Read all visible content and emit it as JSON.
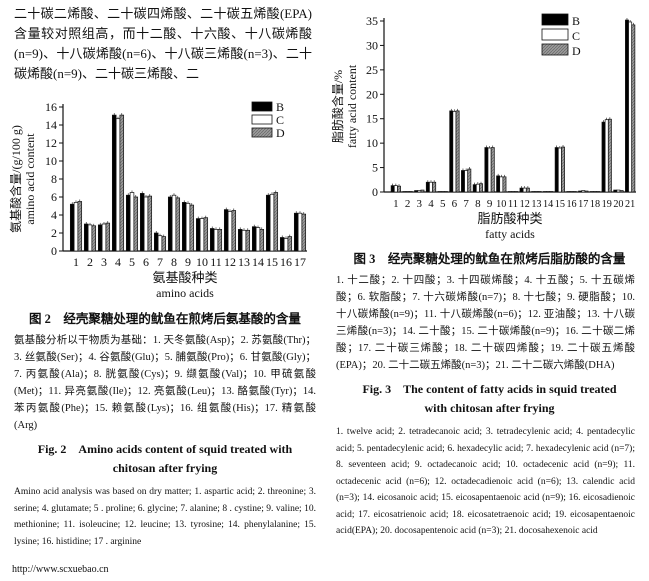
{
  "body_text": "二十碳二烯酸、二十碳四烯酸、二十碳五烯酸(EPA)含量较对照组高，而十二酸、十六酸、十八碳烯酸(n=9)、十八碳烯酸(n=6)、十八碳三烯酸(n=3)、二十碳烯酸(n=9)、二十碳三烯酸、二",
  "fig2": {
    "title_cn": "图 2　经壳聚糖处理的鱿鱼在煎烤后氨基酸的含量",
    "note_cn": "氨基酸分析以干物质为基础：1. 天冬氨酸(Asp)；2. 苏氨酸(Thr)；3. 丝氨酸(Ser)；4. 谷氨酸(Glu)；5. 脯氨酸(Pro)；6. 甘氨酸(Gly)；7. 丙氨酸(Ala)；8. 胱氨酸(Cys)；9. 缬氨酸(Val)；10. 甲硫氨酸(Met)；11. 异亮氨酸(Ile)；12. 亮氨酸(Leu)；13. 酪氨酸(Tyr)；14. 苯丙氨酸(Phe)；15. 赖氨酸(Lys)；16. 组氨酸(His)；17. 精氨酸(Arg)",
    "title_en": "Fig. 2　Amino acids content of squid treated with chitosan after frying",
    "note_en": "Amino acid analysis was based on dry matter; 1. aspartic acid; 2. threonine; 3. serine; 4. glutamate; 5 . proline; 6. glycine; 7. alanine; 8 . cystine; 9. valine; 10. methionine; 11. isoleucine; 12. leucine; 13. tyrosine; 14. phenylalanine; 15. lysine; 16. histidine; 17 . arginine"
  },
  "fig3": {
    "title_cn": "图 3　经壳聚糖处理的鱿鱼在煎烤后脂肪酸的含量",
    "note_cn": "1. 十二酸；2. 十四酸；3. 十四碳烯酸；4. 十五酸；5. 十五碳烯酸；6. 软脂酸；7. 十六碳烯酸(n=7)；8. 十七酸；9. 硬脂酸；10. 十八碳烯酸(n=9)；11. 十八碳烯酸(n=6)；12. 亚油酸；13. 十八碳三烯酸(n=3)；14. 二十酸；15. 二十碳烯酸(n=9)；16. 二十碳二烯酸；17. 二十碳三烯酸；18. 二十碳四烯酸；19. 二十碳五烯酸(EPA)；20. 二十二碳五烯酸(n=3)；21. 二十二碳六烯酸(DHA)",
    "title_en": "Fig. 3　The content of fatty acids in squid treated with chitosan after frying",
    "note_en": "1. twelve acid; 2. tetradecanoic acid; 3. tetradecylenic acid; 4. pentadecylic acid; 5. pentadecylenic acid; 6. hexadecylic acid; 7. hexadecylenic acid (n=7); 8. seventeen acid; 9. octadecanoic acid; 10. octadecenic acid (n=9); 11. octadecenic acid (n=6); 12. octadecadienoic acid (n=6); 13. calendic acid (n=3); 14. eicosanoic acid; 15. eicosapentaenoic acid (n=9); 16. eicosadienoic acid; 17. eicosatrienoic acid; 18. eicosatetraenoic acid; 19. eicosapentaenoic acid(EPA); 20. docosapentenoic acid (n=3); 21. docosahexenoic acid"
  },
  "footer_url": "http://www.scxuebao.cn",
  "colors": {
    "B": "#000000",
    "C": "#ffffff",
    "D": "#9a9a9a"
  },
  "chart_data": [
    {
      "type": "bar",
      "ylabel_cn": "氨基酸含量/(g/100 g)",
      "ylabel": "amino acid content",
      "xlabel_cn": "氨基酸种类",
      "xlabel": "amino acids",
      "ylim": [
        0,
        16
      ],
      "yticks": [
        "0",
        "2",
        "4",
        "6",
        "8",
        "10",
        "12",
        "14",
        "16"
      ],
      "categories": [
        "1",
        "2",
        "3",
        "4",
        "5",
        "6",
        "7",
        "8",
        "9",
        "10",
        "11",
        "12",
        "13",
        "14",
        "15",
        "16",
        "17"
      ],
      "legend": "top-right",
      "error_bars": true,
      "series": [
        {
          "name": "B",
          "values": [
            5.2,
            3.0,
            2.9,
            15.1,
            6.2,
            6.4,
            2.0,
            6.0,
            5.4,
            3.6,
            2.5,
            4.6,
            2.4,
            2.7,
            6.2,
            1.5,
            4.2
          ]
        },
        {
          "name": "C",
          "values": [
            5.4,
            2.9,
            3.0,
            14.7,
            6.5,
            6.0,
            1.7,
            6.2,
            5.3,
            3.6,
            2.4,
            4.4,
            2.3,
            2.6,
            6.3,
            1.4,
            4.2
          ]
        },
        {
          "name": "D",
          "values": [
            5.5,
            2.8,
            3.1,
            15.1,
            6.0,
            6.1,
            1.6,
            5.9,
            5.1,
            3.7,
            2.4,
            4.5,
            2.3,
            2.4,
            6.5,
            1.6,
            4.1
          ]
        }
      ]
    },
    {
      "type": "bar",
      "ylabel_cn": "脂肪酸含量/%",
      "ylabel": "fatty acid content",
      "xlabel_cn": "脂肪酸种类",
      "xlabel": "fatty acids",
      "ylim": [
        0,
        35
      ],
      "yticks": [
        "0",
        "5",
        "10",
        "15",
        "20",
        "25",
        "30",
        "35"
      ],
      "categories": [
        "1",
        "2",
        "3",
        "4",
        "5",
        "6",
        "7",
        "8",
        "9",
        "10",
        "11",
        "12",
        "13",
        "14",
        "15",
        "16",
        "17",
        "18",
        "19",
        "20",
        "21"
      ],
      "legend": "top-right",
      "error_bars": true,
      "series": [
        {
          "name": "B",
          "values": [
            1.3,
            0.1,
            0.3,
            2.0,
            0.1,
            16.6,
            4.4,
            1.5,
            9.1,
            3.3,
            0.1,
            0.8,
            0.1,
            0.1,
            9.1,
            0.1,
            0.2,
            0.1,
            14.3,
            0.4,
            35.2
          ]
        },
        {
          "name": "C",
          "values": [
            1.3,
            0.1,
            0.3,
            2.0,
            0.1,
            16.5,
            4.4,
            1.6,
            9.0,
            3.1,
            0.1,
            0.8,
            0.1,
            0.1,
            9.0,
            0.1,
            0.3,
            0.1,
            14.8,
            0.4,
            34.8
          ]
        },
        {
          "name": "D",
          "values": [
            1.2,
            0.1,
            0.4,
            2.0,
            0.1,
            16.6,
            4.7,
            1.7,
            9.1,
            3.1,
            0.1,
            0.8,
            0.1,
            0.1,
            9.2,
            0.1,
            0.2,
            0.1,
            14.9,
            0.3,
            34.2
          ]
        }
      ]
    }
  ]
}
